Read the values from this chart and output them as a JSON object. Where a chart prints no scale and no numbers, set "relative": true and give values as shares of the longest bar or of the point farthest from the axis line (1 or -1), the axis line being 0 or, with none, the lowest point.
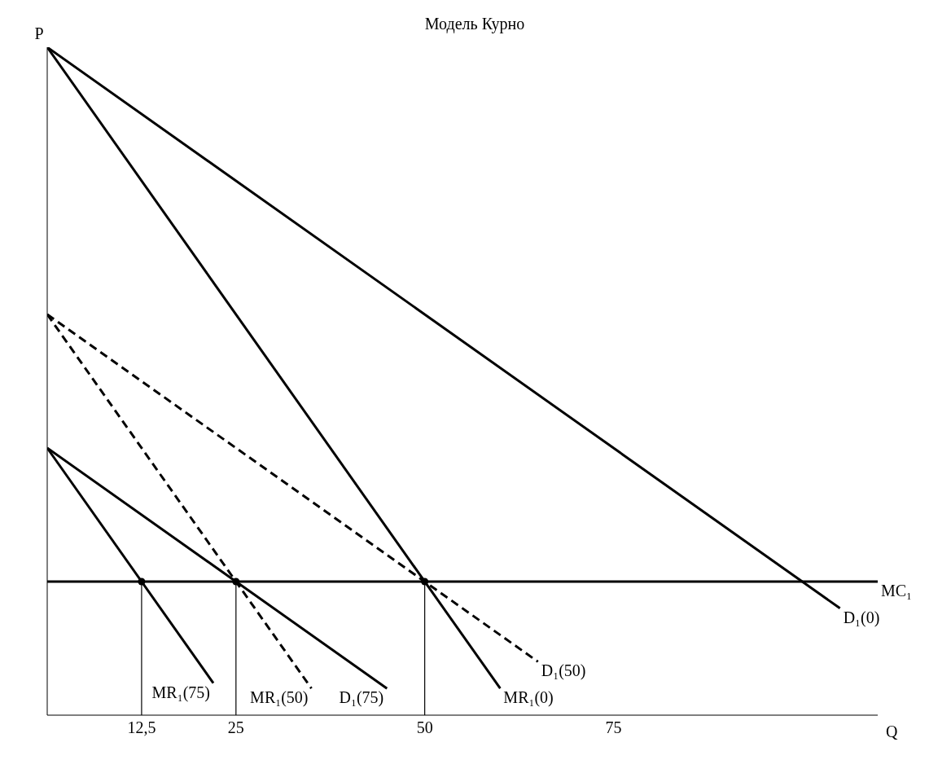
{
  "chart_data": {
    "type": "line",
    "title": "Модель Курно",
    "xlabel": "Q",
    "ylabel": "P",
    "relative": true,
    "xlim": [
      0,
      110
    ],
    "xticks": [
      {
        "value": 12.5,
        "label": "12,5"
      },
      25,
      50,
      75
    ],
    "series": [
      {
        "name": "D₁(0)",
        "color": "#000000",
        "line_style": "solid",
        "x": [
          0,
          105
        ],
        "values": [
          1,
          0.16
        ]
      },
      {
        "name": "MR₁(0)",
        "color": "#000000",
        "line_style": "solid",
        "x": [
          0,
          60
        ],
        "values": [
          1,
          0.04
        ]
      },
      {
        "name": "D₁(50)",
        "color": "#000000",
        "line_style": "dashed",
        "x": [
          0,
          65
        ],
        "values": [
          0.6,
          0.08
        ]
      },
      {
        "name": "MR₁(50)",
        "color": "#000000",
        "line_style": "dashed",
        "x": [
          0,
          35
        ],
        "values": [
          0.6,
          0.04
        ]
      },
      {
        "name": "D₁(75)",
        "color": "#000000",
        "line_style": "solid",
        "x": [
          0,
          45
        ],
        "values": [
          0.4,
          0.04
        ]
      },
      {
        "name": "MR₁(75)",
        "color": "#000000",
        "line_style": "solid",
        "x": [
          0,
          22
        ],
        "values": [
          0.4,
          0.048
        ]
      },
      {
        "name": "MC₁",
        "color": "#000000",
        "line_style": "solid",
        "x": [
          0,
          110
        ],
        "values": [
          0.2,
          0.2
        ]
      },
      {
        "color": "#000000",
        "line_style": "solid",
        "x": [
          12.5,
          12.5
        ],
        "values": [
          0,
          0.2
        ]
      },
      {
        "color": "#000000",
        "line_style": "solid",
        "x": [
          25,
          25
        ],
        "values": [
          0,
          0.2
        ]
      },
      {
        "color": "#000000",
        "line_style": "solid",
        "x": [
          50,
          50
        ],
        "values": [
          0,
          0.2
        ]
      },
      {
        "type": "scatter",
        "marker": "circle",
        "color": "#000000",
        "x": [
          12.5,
          25,
          50
        ],
        "values": [
          0.2,
          0.2,
          0.2
        ]
      }
    ]
  }
}
